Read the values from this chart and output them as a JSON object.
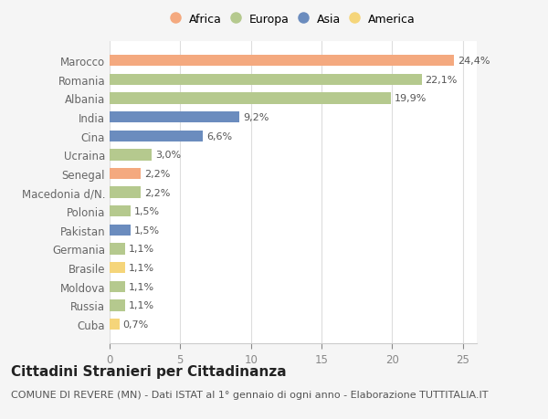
{
  "categories": [
    "Marocco",
    "Romania",
    "Albania",
    "India",
    "Cina",
    "Ucraina",
    "Senegal",
    "Macedonia d/N.",
    "Polonia",
    "Pakistan",
    "Germania",
    "Brasile",
    "Moldova",
    "Russia",
    "Cuba"
  ],
  "values": [
    24.4,
    22.1,
    19.9,
    9.2,
    6.6,
    3.0,
    2.2,
    2.2,
    1.5,
    1.5,
    1.1,
    1.1,
    1.1,
    1.1,
    0.7
  ],
  "continents": [
    "Africa",
    "Europa",
    "Europa",
    "Asia",
    "Asia",
    "Europa",
    "Africa",
    "Europa",
    "Europa",
    "Asia",
    "Europa",
    "America",
    "Europa",
    "Europa",
    "America"
  ],
  "labels": [
    "24,4%",
    "22,1%",
    "19,9%",
    "9,2%",
    "6,6%",
    "3,0%",
    "2,2%",
    "2,2%",
    "1,5%",
    "1,5%",
    "1,1%",
    "1,1%",
    "1,1%",
    "1,1%",
    "0,7%"
  ],
  "continent_colors": {
    "Africa": "#F4A97F",
    "Europa": "#B5C98E",
    "Asia": "#6B8CBE",
    "America": "#F5D57A"
  },
  "legend_order": [
    "Africa",
    "Europa",
    "Asia",
    "America"
  ],
  "title": "Cittadini Stranieri per Cittadinanza",
  "subtitle": "COMUNE DI REVERE (MN) - Dati ISTAT al 1° gennaio di ogni anno - Elaborazione TUTTITALIA.IT",
  "xlim": [
    0,
    26
  ],
  "xticks": [
    0,
    5,
    10,
    15,
    20,
    25
  ],
  "bg_color": "#f5f5f5",
  "bar_bg_color": "#ffffff",
  "label_fontsize": 8.0,
  "tick_fontsize": 8.5,
  "title_fontsize": 11,
  "subtitle_fontsize": 8
}
